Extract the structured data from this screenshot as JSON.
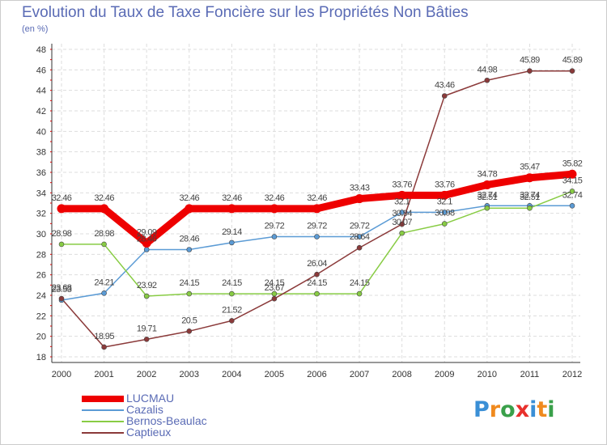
{
  "title": "Evolution du Taux de Taxe Foncière sur les Propriétés Non Bâties",
  "subtitle": "(en %)",
  "logo": {
    "text": "Proxiti",
    "letter_colors": [
      "#3a8fd6",
      "#f08a1e",
      "#3aa04a",
      "#e8302c",
      "#3a8fd6",
      "#f08a1e",
      "#3aa04a"
    ]
  },
  "chart_data": {
    "type": "line",
    "title": "Evolution du Taux de Taxe Foncière sur les Propriétés Non Bâties",
    "ylabel": "(en %)",
    "xlabel": "",
    "x": [
      "2000",
      "2001",
      "2002",
      "2003",
      "2004",
      "2005",
      "2006",
      "2007",
      "2008",
      "2009",
      "2010",
      "2011",
      "2012"
    ],
    "ylim": [
      18,
      48
    ],
    "yticks": [
      18,
      20,
      22,
      24,
      26,
      28,
      30,
      32,
      34,
      36,
      38,
      40,
      42,
      44,
      46,
      48
    ],
    "grid": true,
    "legend_position": "bottom-left",
    "series": [
      {
        "name": "LUCMAU",
        "color": "#ee0000",
        "emphasis": true,
        "values": [
          32.46,
          32.46,
          29.09,
          32.46,
          32.46,
          32.46,
          32.46,
          33.43,
          33.76,
          33.76,
          34.78,
          35.47,
          35.82
        ],
        "labels": [
          "32.46",
          "32.46",
          "29.09",
          "32.46",
          "32.46",
          "32.46",
          "32.46",
          "33.43",
          "33.76",
          "33.76",
          "34.78",
          "35.47",
          "35.82"
        ]
      },
      {
        "name": "Cazalis",
        "color": "#5b9bd5",
        "emphasis": false,
        "values": [
          23.53,
          24.21,
          28.46,
          28.46,
          29.14,
          29.72,
          29.72,
          29.72,
          32.1,
          32.1,
          32.74,
          32.74,
          32.74
        ],
        "labels": [
          "23.53",
          "24.21",
          "28.46",
          "28.46",
          "29.14",
          "29.72",
          "29.72",
          "29.72",
          "32.1",
          "32.1",
          "32.74",
          "32.74",
          "32.74"
        ]
      },
      {
        "name": "Bernos-Beaulac",
        "color": "#88cc44",
        "emphasis": false,
        "values": [
          28.98,
          28.98,
          23.92,
          24.15,
          24.15,
          24.15,
          24.15,
          24.15,
          30.07,
          30.98,
          32.51,
          32.51,
          34.15
        ],
        "labels": [
          "28.98",
          "28.98",
          "23.92",
          "24.15",
          "24.15",
          "24.15",
          "24.15",
          "24.15",
          "30.07",
          "30.98",
          "32.51",
          "32.51",
          "34.15"
        ]
      },
      {
        "name": "Captieux",
        "color": "#8b3a3a",
        "emphasis": false,
        "values": [
          23.68,
          18.95,
          19.71,
          20.5,
          21.52,
          23.67,
          26.04,
          28.64,
          30.94,
          43.46,
          44.98,
          45.89,
          45.89
        ],
        "labels": [
          "23.68",
          "18.95",
          "19.71",
          "20.5",
          "21.52",
          "23.67",
          "26.04",
          "28.64",
          "30.94",
          "43.46",
          "44.98",
          "45.89",
          "45.89"
        ]
      }
    ]
  }
}
